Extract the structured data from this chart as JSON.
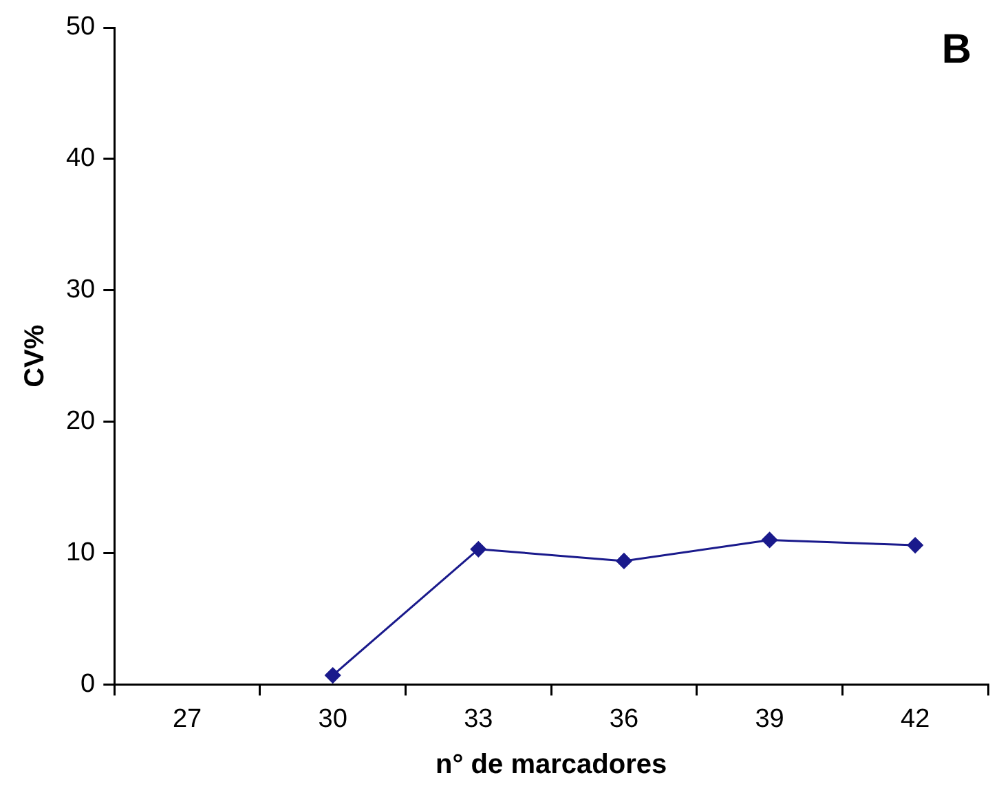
{
  "chart_data": {
    "type": "line",
    "xlabel": "n° de marcadores",
    "ylabel": "CV%",
    "annotations": [
      "B"
    ],
    "categories": [
      "27",
      "30",
      "33",
      "36",
      "39",
      "42"
    ],
    "series": [
      {
        "color": "#1a1a8c",
        "values": [
          null,
          0.7,
          10.3,
          9.4,
          11.0,
          10.6
        ]
      }
    ],
    "ylim": [
      0,
      50
    ],
    "yticks": [
      0,
      10,
      20,
      30,
      40,
      50
    ],
    "grid": false,
    "legend": false,
    "marker": "diamond",
    "line_style": "solid"
  }
}
